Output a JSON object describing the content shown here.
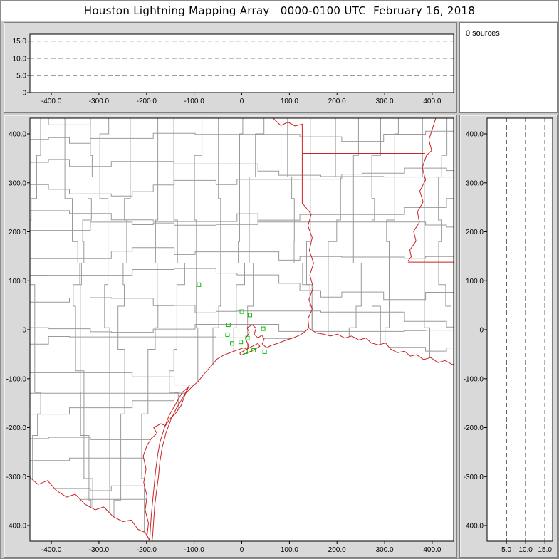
{
  "title": "Houston Lightning Mapping Array   0000-0100 UTC  February 16, 2018",
  "sources_panel": {
    "label": "0 sources"
  },
  "colors": {
    "plot_bg": "#ffffff",
    "axis": "#000000",
    "grid": "#000000",
    "county": "#9a9a9a",
    "state_border": "#cc2222",
    "station": "#00bb00"
  },
  "chart_data": [
    {
      "id": "alt_vs_ew",
      "type": "scatter",
      "title": "altitude (km) vs east-west distance (km)",
      "xlim": [
        -445,
        445
      ],
      "ylim": [
        0,
        17
      ],
      "xticks": {
        "values": [
          -400,
          -300,
          -200,
          -100,
          0,
          100,
          200,
          300,
          400
        ],
        "labels": [
          "-400.0",
          "-300.0",
          "-200.0",
          "-100.0",
          "0",
          "100.0",
          "200.0",
          "300.0",
          "400.0"
        ]
      },
      "yticks": {
        "values": [
          15,
          10,
          5,
          0
        ],
        "labels": [
          "15.0",
          "10.0",
          "5.0",
          "0"
        ]
      },
      "gridlines": [
        5,
        10,
        15
      ],
      "points": []
    },
    {
      "id": "plan_view",
      "type": "scatter",
      "title": "plan view map, km east and km north of Houston LMA center",
      "xlim": [
        -445,
        445
      ],
      "ylim": [
        -432,
        432
      ],
      "xticks": {
        "values": [
          -400,
          -300,
          -200,
          -100,
          0,
          100,
          200,
          300,
          400
        ],
        "labels": [
          "-400.0",
          "-300.0",
          "-200.0",
          "-100.0",
          "0",
          "100.0",
          "200.0",
          "300.0",
          "400.0"
        ]
      },
      "yticks": {
        "values": [
          400,
          300,
          200,
          100,
          0,
          -100,
          -200,
          -300,
          -400
        ],
        "labels": [
          "400.0",
          "300.0",
          "200.0",
          "100.0",
          "0",
          "-100.0",
          "-200.0",
          "-300.0",
          "-400.0"
        ]
      },
      "points": [],
      "stations": [
        [
          -90,
          92
        ],
        [
          0,
          37
        ],
        [
          17,
          30
        ],
        [
          -28,
          10
        ],
        [
          -30,
          -10
        ],
        [
          -20,
          -28
        ],
        [
          -2,
          -25
        ],
        [
          12,
          -17
        ],
        [
          8,
          -45
        ],
        [
          25,
          -42
        ],
        [
          45,
          2
        ],
        [
          48,
          -45
        ]
      ],
      "map": {
        "coastline": [
          [
            -193,
            -432
          ],
          [
            -199,
            -420
          ],
          [
            -196,
            -395
          ],
          [
            -203,
            -368
          ],
          [
            -199,
            -340
          ],
          [
            -206,
            -312
          ],
          [
            -201,
            -285
          ],
          [
            -207,
            -258
          ],
          [
            -199,
            -236
          ],
          [
            -190,
            -222
          ],
          [
            -178,
            -212
          ],
          [
            -185,
            -200
          ],
          [
            -170,
            -192
          ],
          [
            -160,
            -196
          ],
          [
            -152,
            -183
          ],
          [
            -140,
            -172
          ],
          [
            -128,
            -156
          ],
          [
            -118,
            -130
          ],
          [
            -104,
            -116
          ],
          [
            -92,
            -106
          ],
          [
            -78,
            -89
          ],
          [
            -64,
            -74
          ],
          [
            -52,
            -60
          ],
          [
            -38,
            -52
          ],
          [
            -22,
            -46
          ],
          [
            -8,
            -41
          ],
          [
            4,
            -37
          ],
          [
            12,
            -40
          ],
          [
            14,
            -32
          ],
          [
            8,
            -18
          ],
          [
            16,
            -6
          ],
          [
            11,
            4
          ],
          [
            22,
            10
          ],
          [
            30,
            3
          ],
          [
            26,
            -9
          ],
          [
            34,
            -17
          ],
          [
            42,
            -11
          ],
          [
            47,
            -19
          ],
          [
            43,
            -29
          ],
          [
            52,
            -37
          ],
          [
            62,
            -32
          ],
          [
            78,
            -27
          ],
          [
            94,
            -21
          ],
          [
            110,
            -16
          ],
          [
            124,
            -10
          ],
          [
            134,
            -3
          ],
          [
            141,
            4
          ],
          [
            147,
            -1
          ],
          [
            158,
            -7
          ],
          [
            172,
            -9
          ],
          [
            186,
            -13
          ],
          [
            201,
            -9
          ],
          [
            216,
            -17
          ],
          [
            231,
            -13
          ],
          [
            246,
            -21
          ],
          [
            261,
            -17
          ],
          [
            272,
            -27
          ],
          [
            287,
            -31
          ],
          [
            302,
            -27
          ],
          [
            312,
            -39
          ],
          [
            327,
            -47
          ],
          [
            342,
            -44
          ],
          [
            354,
            -54
          ],
          [
            367,
            -51
          ],
          [
            382,
            -61
          ],
          [
            397,
            -57
          ],
          [
            412,
            -67
          ],
          [
            427,
            -63
          ],
          [
            442,
            -71
          ],
          [
            450,
            -70
          ]
        ],
        "rio_grande": [
          [
            -447,
            -300
          ],
          [
            -428,
            -316
          ],
          [
            -408,
            -308
          ],
          [
            -390,
            -328
          ],
          [
            -368,
            -342
          ],
          [
            -350,
            -336
          ],
          [
            -330,
            -356
          ],
          [
            -308,
            -368
          ],
          [
            -290,
            -362
          ],
          [
            -270,
            -382
          ],
          [
            -250,
            -392
          ],
          [
            -232,
            -389
          ],
          [
            -218,
            -408
          ],
          [
            -203,
            -414
          ],
          [
            -196,
            -426
          ],
          [
            -193,
            -432
          ]
        ],
        "barrier_island": [
          [
            -110,
            -114
          ],
          [
            -122,
            -136
          ],
          [
            -137,
            -160
          ],
          [
            -149,
            -184
          ],
          [
            -159,
            -210
          ],
          [
            -167,
            -240
          ],
          [
            -172,
            -270
          ],
          [
            -175,
            -300
          ],
          [
            -179,
            -330
          ],
          [
            -183,
            -360
          ],
          [
            -185,
            -390
          ],
          [
            -187,
            -418
          ],
          [
            -189,
            -438
          ],
          [
            -194,
            -436
          ],
          [
            -192,
            -408
          ],
          [
            -190,
            -378
          ],
          [
            -187,
            -348
          ],
          [
            -184,
            -318
          ],
          [
            -181,
            -288
          ],
          [
            -177,
            -258
          ],
          [
            -172,
            -230
          ],
          [
            -163,
            -202
          ],
          [
            -153,
            -176
          ],
          [
            -139,
            -152
          ],
          [
            -125,
            -128
          ],
          [
            -113,
            -118
          ]
        ],
        "galveston_island": [
          [
            -2,
            -52
          ],
          [
            12,
            -47
          ],
          [
            26,
            -41
          ],
          [
            38,
            -34
          ],
          [
            34,
            -28
          ],
          [
            20,
            -35
          ],
          [
            6,
            -42
          ],
          [
            -4,
            -48
          ]
        ],
        "tx_la_border": [
          [
            141,
            4
          ],
          [
            139,
            22
          ],
          [
            148,
            42
          ],
          [
            141,
            62
          ],
          [
            150,
            86
          ],
          [
            143,
            112
          ],
          [
            151,
            136
          ],
          [
            142,
            162
          ],
          [
            148,
            188
          ],
          [
            139,
            212
          ],
          [
            146,
            236
          ],
          [
            131,
            254
          ],
          [
            127,
            258
          ],
          [
            127,
            420
          ],
          [
            112,
            416
          ],
          [
            97,
            424
          ],
          [
            82,
            417
          ],
          [
            70,
            428
          ],
          [
            64,
            434
          ]
        ],
        "la_ar_border": [
          [
            127,
            360
          ],
          [
            385,
            360
          ]
        ],
        "mississippi_river": [
          [
            408,
            434
          ],
          [
            401,
            412
          ],
          [
            393,
            388
          ],
          [
            399,
            366
          ],
          [
            388,
            356
          ],
          [
            379,
            331
          ],
          [
            386,
            306
          ],
          [
            374,
            283
          ],
          [
            381,
            261
          ],
          [
            369,
            241
          ],
          [
            373,
            219
          ],
          [
            361,
            201
          ],
          [
            366,
            181
          ],
          [
            353,
            163
          ],
          [
            356,
            149
          ],
          [
            349,
            140
          ]
        ],
        "la_ms_border": [
          [
            349,
            138
          ],
          [
            450,
            138
          ]
        ]
      }
    },
    {
      "id": "alt_vs_ns",
      "type": "scatter",
      "title": "altitude (km) vs north-south distance (km)",
      "xlim": [
        0,
        17
      ],
      "ylim": [
        -432,
        432
      ],
      "xticks": {
        "values": [
          5,
          10,
          15
        ],
        "labels": [
          "5.0",
          "10.0",
          "15.0"
        ]
      },
      "yticks": {
        "values": [
          400,
          300,
          200,
          100,
          0,
          -100,
          -200,
          -300,
          -400
        ],
        "labels": [
          "400.0",
          "300.0",
          "200.0",
          "100.0",
          "0",
          "-100.0",
          "-200.0",
          "-300.0",
          "-400.0"
        ]
      },
      "gridlines": [
        5,
        10,
        15
      ],
      "points": []
    }
  ]
}
